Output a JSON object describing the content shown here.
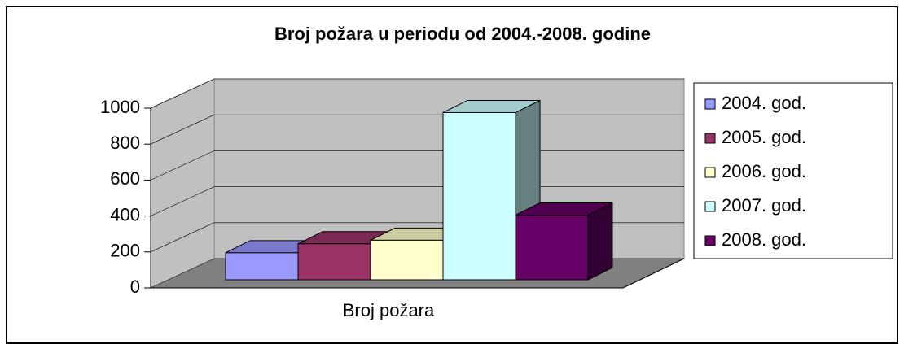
{
  "chart_data": {
    "type": "bar3d",
    "title": "Broj požara u periodu od 2004.-2008. godine",
    "categories": [
      "Broj požara"
    ],
    "series": [
      {
        "name": "2004. god.",
        "color": "#9999ff",
        "values": [
          150
        ]
      },
      {
        "name": "2005. god.",
        "color": "#993366",
        "values": [
          200
        ]
      },
      {
        "name": "2006. god.",
        "color": "#ffffcc",
        "values": [
          220
        ]
      },
      {
        "name": "2007. god.",
        "color": "#ccffff",
        "values": [
          930
        ]
      },
      {
        "name": "2008. god.",
        "color": "#660066",
        "values": [
          360
        ]
      }
    ],
    "ylim": [
      0,
      1000
    ],
    "yticks": [
      0,
      200,
      400,
      600,
      800,
      1000
    ],
    "grid": true,
    "legend": "right"
  }
}
